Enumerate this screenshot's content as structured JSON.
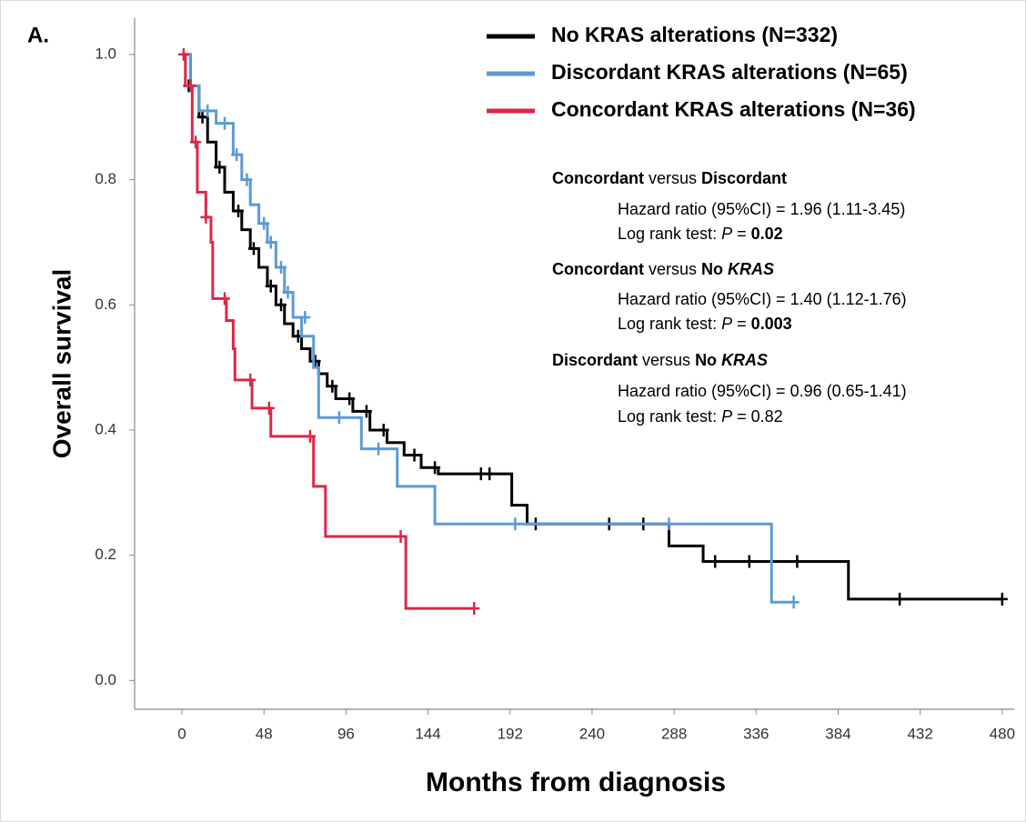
{
  "chart_data": {
    "type": "step",
    "panel_label": "A.",
    "x_label": "Months from diagnosis",
    "y_label": "Overall survival",
    "xlim": [
      -27.7,
      487
    ],
    "ylim": [
      -0.046,
      1.058
    ],
    "xticks": [
      0,
      48,
      96,
      144,
      192,
      240,
      288,
      336,
      384,
      432,
      480
    ],
    "yticks": [
      {
        "value": 0,
        "label": "0.0"
      },
      {
        "value": 0.2,
        "label": "0.2"
      },
      {
        "value": 0.4,
        "label": "0.4"
      },
      {
        "value": 0.6,
        "label": "0.6"
      },
      {
        "value": 0.8,
        "label": "0.8"
      },
      {
        "value": 1,
        "label": "1.0"
      }
    ],
    "series": [
      {
        "name": "No KRAS alterations (N=332)",
        "color": "#000000",
        "x": [
          0,
          5,
          10,
          15,
          20,
          25,
          30,
          35,
          40,
          45,
          50,
          55,
          60,
          65,
          70,
          75,
          80,
          85,
          90,
          100,
          110,
          120,
          130,
          140,
          150,
          193,
          202,
          285,
          305,
          390,
          480
        ],
        "values": [
          1.0,
          0.95,
          0.9,
          0.86,
          0.82,
          0.78,
          0.75,
          0.72,
          0.69,
          0.66,
          0.63,
          0.6,
          0.57,
          0.55,
          0.53,
          0.51,
          0.49,
          0.47,
          0.45,
          0.43,
          0.4,
          0.38,
          0.36,
          0.34,
          0.33,
          0.28,
          0.25,
          0.215,
          0.19,
          0.13,
          0.13
        ],
        "censor_x": [
          4,
          12,
          22,
          33,
          42,
          52,
          58,
          68,
          78,
          88,
          98,
          108,
          118,
          136,
          148,
          175,
          180,
          207,
          250,
          270,
          312,
          332,
          360,
          420,
          480
        ],
        "censor_values": [
          0.95,
          0.9,
          0.82,
          0.75,
          0.69,
          0.63,
          0.6,
          0.55,
          0.51,
          0.47,
          0.45,
          0.43,
          0.4,
          0.36,
          0.34,
          0.33,
          0.33,
          0.25,
          0.25,
          0.25,
          0.19,
          0.19,
          0.19,
          0.13,
          0.13
        ]
      },
      {
        "name": "Discordant KRAS alterations (N=65)",
        "color": "#5b9bd5",
        "x": [
          0,
          5,
          10,
          20,
          30,
          35,
          40,
          45,
          50,
          55,
          60,
          65,
          70,
          77,
          80,
          105,
          126,
          148,
          345,
          358
        ],
        "values": [
          1.0,
          0.95,
          0.91,
          0.89,
          0.84,
          0.8,
          0.76,
          0.73,
          0.7,
          0.66,
          0.62,
          0.58,
          0.55,
          0.5,
          0.42,
          0.37,
          0.31,
          0.25,
          0.125,
          0.125
        ],
        "censor_x": [
          15,
          25,
          32,
          38,
          48,
          52,
          58,
          62,
          72,
          92,
          115,
          195,
          285,
          358
        ],
        "censor_values": [
          0.91,
          0.89,
          0.84,
          0.8,
          0.73,
          0.7,
          0.66,
          0.62,
          0.58,
          0.42,
          0.37,
          0.25,
          0.25,
          0.125
        ]
      },
      {
        "name": "Concordant KRAS alterations (N=36)",
        "color": "#dc2847",
        "x": [
          0,
          2,
          6,
          9,
          14,
          17,
          18,
          26,
          30,
          31,
          41,
          52,
          77,
          84,
          131,
          171
        ],
        "values": [
          1.0,
          0.95,
          0.86,
          0.78,
          0.74,
          0.7,
          0.61,
          0.575,
          0.53,
          0.48,
          0.435,
          0.39,
          0.31,
          0.23,
          0.115,
          0.115
        ],
        "censor_x": [
          1,
          5,
          8,
          14,
          25,
          40,
          51,
          75,
          128,
          171
        ],
        "censor_values": [
          1.0,
          0.95,
          0.86,
          0.74,
          0.61,
          0.48,
          0.435,
          0.39,
          0.23,
          0.115
        ]
      }
    ],
    "annotations": [
      {
        "heading": [
          "Concordant",
          " versus ",
          "Discordant"
        ],
        "hazard": "Hazard ratio (95%CI) = 1.96 (1.11-3.45)",
        "logrank": [
          "Log rank test: ",
          "P",
          " = ",
          "0.02"
        ]
      },
      {
        "heading": [
          "Concordant",
          " versus ",
          "No ",
          "KRAS"
        ],
        "hazard": "Hazard ratio (95%CI) = 1.40 (1.12-1.76)",
        "logrank": [
          "Log rank test: ",
          "P",
          " = ",
          "0.003"
        ]
      },
      {
        "heading": [
          "Discordant",
          " versus ",
          "No ",
          "KRAS"
        ],
        "hazard": "Hazard ratio (95%CI) = 0.96 (0.65-1.41)",
        "logrank": [
          "Log rank test: ",
          "P",
          " = ",
          "0.82"
        ]
      }
    ]
  }
}
